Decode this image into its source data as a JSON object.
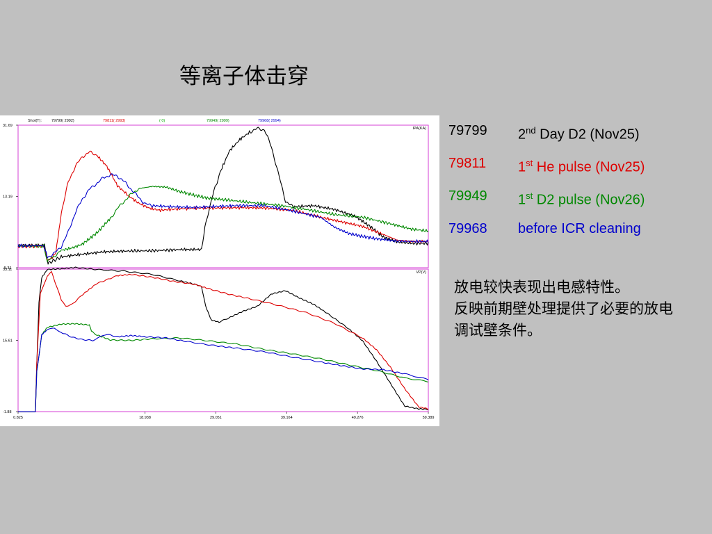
{
  "slide": {
    "title": "等离子体击穿",
    "note": "放电较快表现出电感特性。\n反映前期壁处理提供了必要的放电调试壁条件。"
  },
  "legend": [
    {
      "shot": "79799",
      "ordinal": "2",
      "sup": "nd",
      "text": " Day D2 (Nov25)",
      "color": "#000000"
    },
    {
      "shot": "79811",
      "ordinal": "1",
      "sup": "st",
      "text": " He pulse (Nov25)",
      "color": "#dd0000"
    },
    {
      "shot": "79949",
      "ordinal": "1",
      "sup": "st",
      "text": " D2 pulse (Nov26)",
      "color": "#008800"
    },
    {
      "shot": "79968",
      "ordinal": "",
      "sup": "",
      "text": "before ICR cleaning",
      "color": "#0000cc"
    }
  ],
  "chart_data": {
    "type": "line",
    "header": {
      "label": "Shot(T):",
      "entries": [
        {
          "text": "79799( 2992)",
          "color": "#000000"
        },
        {
          "text": "79811( 2993)",
          "color": "#dd0000"
        },
        {
          "text": "(    0)",
          "color": "#00aa00"
        },
        {
          "text": "79949( 2999)",
          "color": "#008800"
        },
        {
          "text": "79968( 2994)",
          "color": "#0000cc"
        }
      ]
    },
    "x_ticks": [
      "0.825",
      "18.938",
      "29.051",
      "39.164",
      "49.276",
      "59.389"
    ],
    "xlim": [
      0.825,
      59.389
    ],
    "panels": [
      {
        "ylabel": "IPA(KA)",
        "y_ticks": [
          "31.69",
          "13.19",
          "-5.31"
        ],
        "ylim": [
          -5.31,
          31.69
        ],
        "series": [
          {
            "color": "#000000",
            "points": [
              [
                0.825,
                0.5
              ],
              [
                4.6,
                0.5
              ],
              [
                5.1,
                -4.2
              ],
              [
                7,
                -2.5
              ],
              [
                10,
                -1.8
              ],
              [
                13,
                -1.2
              ],
              [
                16,
                -1.0
              ],
              [
                20,
                -0.9
              ],
              [
                24,
                -0.6
              ],
              [
                27,
                -0.6
              ],
              [
                27.5,
                5
              ],
              [
                28.5,
                13
              ],
              [
                29.8,
                20
              ],
              [
                31,
                25
              ],
              [
                32.5,
                28
              ],
              [
                34,
                30
              ],
              [
                35,
                30.8
              ],
              [
                36,
                30.5
              ],
              [
                37,
                26
              ],
              [
                38,
                19
              ],
              [
                39,
                12
              ],
              [
                40,
                10.5
              ],
              [
                43,
                10.8
              ],
              [
                46,
                9.8
              ],
              [
                49,
                8
              ],
              [
                51,
                5.5
              ],
              [
                53,
                2.6
              ],
              [
                55,
                1.4
              ],
              [
                57,
                1.0
              ],
              [
                59.389,
                1.0
              ]
            ]
          },
          {
            "color": "#dd0000",
            "points": [
              [
                0.825,
                0.2
              ],
              [
                4.5,
                0.3
              ],
              [
                5.0,
                -3.5
              ],
              [
                5.6,
                -2.8
              ],
              [
                6.2,
                -1.5
              ],
              [
                7,
                9
              ],
              [
                8,
                17
              ],
              [
                9,
                21
              ],
              [
                10,
                23.5
              ],
              [
                11,
                24.7
              ],
              [
                12,
                24
              ],
              [
                13.5,
                21
              ],
              [
                15,
                16
              ],
              [
                16.5,
                13.5
              ],
              [
                18,
                11.5
              ],
              [
                19.5,
                10.2
              ],
              [
                21,
                9.6
              ],
              [
                24,
                10
              ],
              [
                27,
                10.2
              ],
              [
                30,
                10.2
              ],
              [
                33,
                10.3
              ],
              [
                36,
                10.2
              ],
              [
                40,
                9.6
              ],
              [
                44,
                7.8
              ],
              [
                47,
                6.6
              ],
              [
                50,
                5.4
              ],
              [
                53,
                3.3
              ],
              [
                55,
                1.8
              ],
              [
                57,
                1.5
              ],
              [
                59.389,
                1.5
              ]
            ]
          },
          {
            "color": "#008800",
            "points": [
              [
                0.825,
                0.3
              ],
              [
                4.5,
                0.3
              ],
              [
                5.0,
                -3.8
              ],
              [
                6,
                -2.3
              ],
              [
                7,
                -0.8
              ],
              [
                8.5,
                -0.2
              ],
              [
                10,
                0.8
              ],
              [
                12,
                3.6
              ],
              [
                14,
                7.5
              ],
              [
                15,
                10
              ],
              [
                16,
                12
              ],
              [
                17,
                13.8
              ],
              [
                18,
                15.2
              ],
              [
                20,
                15.8
              ],
              [
                22,
                15.6
              ],
              [
                24,
                14.4
              ],
              [
                26,
                13.5
              ],
              [
                28,
                12.7
              ],
              [
                30,
                12.4
              ],
              [
                34,
                11.6
              ],
              [
                38,
                10.9
              ],
              [
                42,
                9.8
              ],
              [
                46,
                8.5
              ],
              [
                50,
                7.8
              ],
              [
                54,
                6.1
              ],
              [
                57,
                4.7
              ],
              [
                59.389,
                4.2
              ]
            ]
          },
          {
            "color": "#0000cc",
            "points": [
              [
                0.825,
                0.4
              ],
              [
                4.5,
                0.4
              ],
              [
                5.0,
                -2.6
              ],
              [
                6,
                -1.6
              ],
              [
                7,
                0.2
              ],
              [
                8,
                4
              ],
              [
                9,
                9
              ],
              [
                10,
                12.5
              ],
              [
                11,
                15
              ],
              [
                12,
                16.5
              ],
              [
                13,
                18
              ],
              [
                14,
                18.8
              ],
              [
                15,
                18.5
              ],
              [
                16,
                17
              ],
              [
                17,
                15
              ],
              [
                18,
                13
              ],
              [
                19,
                11.2
              ],
              [
                20,
                10.8
              ],
              [
                23,
                10.5
              ],
              [
                26,
                10.3
              ],
              [
                29,
                10.6
              ],
              [
                32,
                10.8
              ],
              [
                36,
                10.8
              ],
              [
                40,
                9.4
              ],
              [
                44,
                7.8
              ],
              [
                46,
                5.2
              ],
              [
                48,
                3.6
              ],
              [
                50,
                2.8
              ],
              [
                52,
                2.2
              ],
              [
                55,
                1.6
              ],
              [
                57,
                1.5
              ],
              [
                59.389,
                1.5
              ]
            ]
          }
        ]
      },
      {
        "ylabel": "VP(V)",
        "y_ticks": [
          "33.11",
          "15.61",
          "-1.88"
        ],
        "ylim": [
          -1.88,
          33.11
        ],
        "series": [
          {
            "color": "#000000",
            "points": [
              [
                0.825,
                -1.9
              ],
              [
                3.3,
                -1.9
              ],
              [
                3.5,
                10
              ],
              [
                3.8,
                25
              ],
              [
                4.2,
                31
              ],
              [
                5,
                33
              ],
              [
                7,
                33.2
              ],
              [
                9,
                33.5
              ],
              [
                12,
                33.0
              ],
              [
                16,
                32.6
              ],
              [
                20,
                31.8
              ],
              [
                24,
                30.2
              ],
              [
                26,
                29.4
              ],
              [
                27,
                29
              ],
              [
                27.6,
                24
              ],
              [
                28.4,
                20.6
              ],
              [
                29.5,
                20.1
              ],
              [
                31,
                21.2
              ],
              [
                33,
                22.8
              ],
              [
                35,
                24
              ],
              [
                37,
                27
              ],
              [
                39,
                27.8
              ],
              [
                41,
                26
              ],
              [
                43,
                24.5
              ],
              [
                45,
                22.2
              ],
              [
                48,
                18.5
              ],
              [
                50,
                15.5
              ],
              [
                52,
                10.5
              ],
              [
                54,
                5
              ],
              [
                56,
                -0.5
              ],
              [
                58,
                -1.2
              ],
              [
                59.389,
                -1.3
              ]
            ]
          },
          {
            "color": "#dd0000",
            "points": [
              [
                0.825,
                -1.9
              ],
              [
                3.3,
                -1.9
              ],
              [
                3.5,
                10
              ],
              [
                4,
                27
              ],
              [
                5,
                31.5
              ],
              [
                5.6,
                32.4
              ],
              [
                6.3,
                29
              ],
              [
                7,
                25.5
              ],
              [
                7.6,
                24
              ],
              [
                8.5,
                24.4
              ],
              [
                10,
                26.8
              ],
              [
                12,
                29.5
              ],
              [
                15,
                31.5
              ],
              [
                17,
                31.8
              ],
              [
                20,
                31.1
              ],
              [
                23,
                30.1
              ],
              [
                26,
                29.4
              ],
              [
                28,
                28.3
              ],
              [
                31,
                26.9
              ],
              [
                34,
                25.8
              ],
              [
                38,
                24.2
              ],
              [
                42,
                22.4
              ],
              [
                46,
                19.8
              ],
              [
                50,
                16.2
              ],
              [
                52,
                13.3
              ],
              [
                54,
                9
              ],
              [
                56,
                3.8
              ],
              [
                58,
                -0.7
              ],
              [
                59.389,
                -1.2
              ]
            ]
          },
          {
            "color": "#008800",
            "points": [
              [
                0.825,
                -1.9
              ],
              [
                3.3,
                -1.9
              ],
              [
                3.5,
                8
              ],
              [
                4.2,
                17
              ],
              [
                5,
                18.8
              ],
              [
                7,
                19.6
              ],
              [
                9,
                19.7
              ],
              [
                11,
                19.4
              ],
              [
                11.3,
                17.8
              ],
              [
                12,
                17
              ],
              [
                14,
                15.7
              ],
              [
                17,
                15.6
              ],
              [
                20,
                16.0
              ],
              [
                24,
                16.2
              ],
              [
                28,
                15.5
              ],
              [
                32,
                14.7
              ],
              [
                36,
                13.4
              ],
              [
                40,
                12.3
              ],
              [
                44,
                11.1
              ],
              [
                48,
                9.6
              ],
              [
                52,
                8.2
              ],
              [
                56,
                6.4
              ],
              [
                59.389,
                5.5
              ]
            ]
          },
          {
            "color": "#0000cc",
            "points": [
              [
                0.825,
                -1.9
              ],
              [
                3.3,
                -1.9
              ],
              [
                3.5,
                8
              ],
              [
                4.2,
                17
              ],
              [
                5,
                18.2
              ],
              [
                6,
                18.6
              ],
              [
                7,
                17.6
              ],
              [
                8.5,
                16.4
              ],
              [
                10,
                15.8
              ],
              [
                11.5,
                15.6
              ],
              [
                12.5,
                16.4
              ],
              [
                13.5,
                17.1
              ],
              [
                15,
                16.5
              ],
              [
                17,
                16.8
              ],
              [
                19,
                16.5
              ],
              [
                22,
                16.2
              ],
              [
                25,
                15.3
              ],
              [
                29,
                14.3
              ],
              [
                32,
                13.7
              ],
              [
                36,
                12.8
              ],
              [
                40,
                11.5
              ],
              [
                44,
                10.3
              ],
              [
                47,
                9.4
              ],
              [
                50,
                8.6
              ],
              [
                53,
                8.4
              ],
              [
                56,
                7.4
              ],
              [
                59.389,
                6.0
              ]
            ]
          }
        ]
      }
    ]
  }
}
